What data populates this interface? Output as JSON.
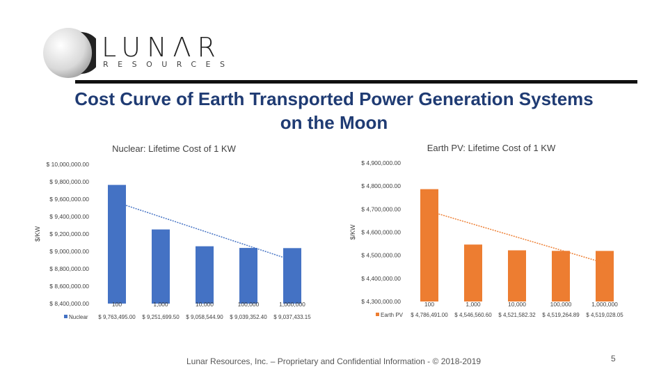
{
  "logo": {
    "wordmark": "LUNΛR",
    "subtitle": "RESOURCES"
  },
  "slide": {
    "title": "Cost Curve of Earth Transported  Power Generation Systems on the Moon",
    "footer": "Lunar Resources, Inc. – Proprietary and Confidential Information - © 2018-2019",
    "page_number": "5"
  },
  "colors": {
    "title": "#1f3b73",
    "nuclear": "#4472c4",
    "earth_pv": "#ed7d31",
    "trend": "#4472c4"
  },
  "chart_data": [
    {
      "type": "bar",
      "title": "Nuclear: Lifetime Cost of 1 KW",
      "ylabel": "$/KW",
      "xlabel": "",
      "categories": [
        "100",
        "1,000",
        "10,000",
        "100,000",
        "1,000,000"
      ],
      "series": [
        {
          "name": "Nuclear",
          "values": [
            9763495.0,
            9251699.5,
            9058544.9,
            9039352.4,
            9037433.15
          ],
          "labels": [
            "$ 9,763,495.00",
            "$ 9,251,699.50",
            "$ 9,058,544.90",
            "$ 9,039,352.40",
            "$ 9,037,433.15"
          ]
        }
      ],
      "ylim": [
        8400000,
        10000000
      ],
      "yticks": [
        8400000,
        8600000,
        8800000,
        9000000,
        9200000,
        9400000,
        9600000,
        9800000,
        10000000
      ],
      "ytick_labels": [
        "$ 8,400,000.00",
        "$ 8,600,000.00",
        "$ 8,800,000.00",
        "$ 9,000,000.00",
        "$ 9,200,000.00",
        "$ 9,400,000.00",
        "$ 9,600,000.00",
        "$ 9,800,000.00",
        "$ 10,000,000.00"
      ],
      "trendline": true,
      "data_table": true,
      "grid": false
    },
    {
      "type": "bar",
      "title": "Earth PV: Lifetime Cost of 1 KW",
      "ylabel": "$/KW",
      "xlabel": "",
      "categories": [
        "100",
        "1,000",
        "10,000",
        "100,000",
        "1,000,000"
      ],
      "series": [
        {
          "name": "Earth PV",
          "values": [
            4786491.0,
            4546560.6,
            4521582.32,
            4519264.89,
            4519028.05
          ],
          "labels": [
            "$ 4,786,491.00",
            "$ 4,546,560.60",
            "$ 4,521,582.32",
            "$ 4,519,264.89",
            "$ 4,519,028.05"
          ]
        }
      ],
      "ylim": [
        4300000,
        4900000
      ],
      "yticks": [
        4300000,
        4400000,
        4500000,
        4600000,
        4700000,
        4800000,
        4900000
      ],
      "ytick_labels": [
        "$ 4,300,000.00",
        "$ 4,400,000.00",
        "$ 4,500,000.00",
        "$ 4,600,000.00",
        "$ 4,700,000.00",
        "$ 4,800,000.00",
        "$ 4,900,000.00"
      ],
      "trendline": true,
      "data_table": true,
      "grid": false
    }
  ]
}
